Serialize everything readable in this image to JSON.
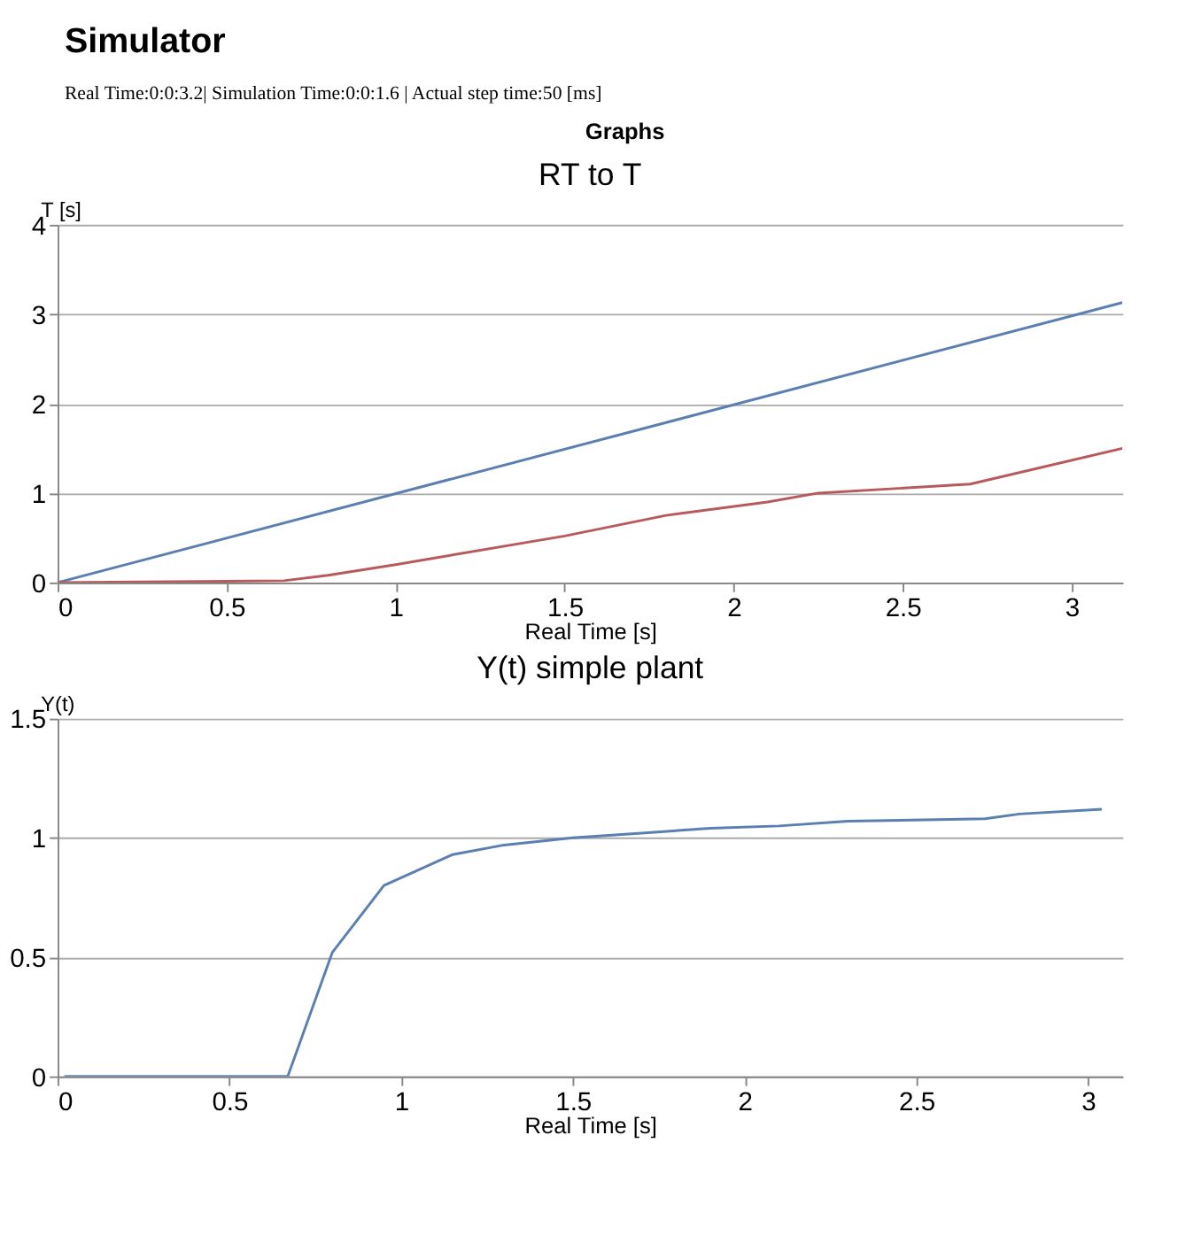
{
  "chart_data": [
    {
      "type": "line",
      "title": "RT to T",
      "xlabel": "Real Time [s]",
      "ylabel": "T [s]",
      "annotations": [
        "Simulator",
        "Real Time:0:0:3.2| Simulation Time:0:0:1.6 | Actual step time:50 [ms]",
        "Graphs"
      ],
      "series": [
        {
          "color": "#5b7fb0",
          "x": [
            0,
            3.15
          ],
          "values": [
            0,
            3.13
          ]
        },
        {
          "color": "#b85a5c",
          "x": [
            0,
            0.67,
            0.8,
            1,
            1.5,
            1.8,
            2.1,
            2.25,
            2.7,
            3.15
          ],
          "values": [
            0,
            0.02,
            0.08,
            0.2,
            0.52,
            0.75,
            0.9,
            1.0,
            1.1,
            1.5
          ]
        }
      ],
      "xlim": [
        0,
        3.15
      ],
      "xticks": [
        0,
        0.5,
        1,
        1.5,
        2,
        2.5,
        3
      ],
      "ylim": [
        0,
        4
      ],
      "yticks": [
        0,
        1,
        2,
        3,
        4
      ],
      "grid": "y"
    },
    {
      "type": "line",
      "title": "Y(t) simple plant",
      "xlabel": "Real Time [s]",
      "ylabel": "Y(t)",
      "series": [
        {
          "color": "#5b7fb0",
          "x": [
            0.02,
            0.67,
            0.8,
            0.95,
            1.15,
            1.3,
            1.5,
            1.7,
            1.9,
            2.1,
            2.3,
            2.7,
            2.8,
            3.04
          ],
          "values": [
            0,
            0,
            0.52,
            0.8,
            0.93,
            0.97,
            1.0,
            1.02,
            1.04,
            1.05,
            1.07,
            1.08,
            1.1,
            1.12
          ]
        }
      ],
      "xlim": [
        0,
        3.1
      ],
      "xticks": [
        0,
        0.5,
        1,
        1.5,
        2,
        2.5,
        3
      ],
      "ylim": [
        0,
        1.5
      ],
      "yticks": [
        0,
        0.5,
        1,
        1.5
      ],
      "grid": "y"
    }
  ]
}
